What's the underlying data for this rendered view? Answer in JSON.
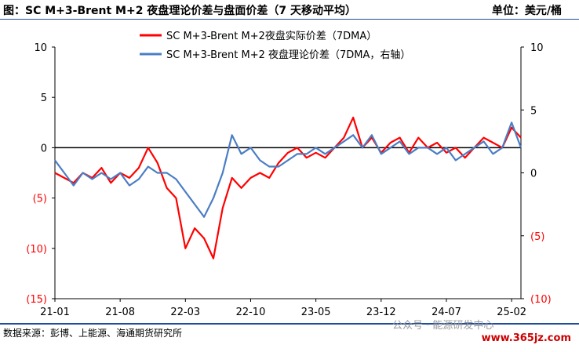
{
  "header": {
    "title": "图：SC M+3-Brent M+2 夜盘理论价差与盘面价差（7 天移动平均）",
    "unit": "单位：美元/桶"
  },
  "footer": {
    "source": "数据来源：彭博、上能源、海通期货研究所",
    "watermark": "公众号 · 能源研发中心",
    "site": "www.365jz.com"
  },
  "colors": {
    "actual": "#ff0000",
    "theory": "#4a7dc4",
    "neg_label": "#ff0000"
  },
  "chart_data": {
    "type": "line",
    "legend_placement": "top-center",
    "grid": false,
    "x_tick_labels": [
      "21-01",
      "21-08",
      "22-03",
      "22-10",
      "23-05",
      "23-12",
      "24-07",
      "25-02"
    ],
    "x": [
      "21-01",
      "21-02",
      "21-03",
      "21-04",
      "21-05",
      "21-06",
      "21-07",
      "21-08",
      "21-09",
      "21-10",
      "21-11",
      "21-12",
      "22-01",
      "22-02",
      "22-03",
      "22-04",
      "22-05",
      "22-06",
      "22-07",
      "22-08",
      "22-09",
      "22-10",
      "22-11",
      "22-12",
      "23-01",
      "23-02",
      "23-03",
      "23-04",
      "23-05",
      "23-06",
      "23-07",
      "23-08",
      "23-09",
      "23-10",
      "23-11",
      "23-12",
      "24-01",
      "24-02",
      "24-03",
      "24-04",
      "24-05",
      "24-06",
      "24-07",
      "24-08",
      "24-09",
      "24-10",
      "24-11",
      "24-12",
      "25-01",
      "25-02",
      "25-03"
    ],
    "y_left": {
      "ticks": [
        10,
        5,
        0,
        -5,
        -10,
        -15
      ],
      "tick_labels": [
        "10",
        "5",
        "0",
        "(5)",
        "(10)",
        "(15)"
      ],
      "range": [
        -15,
        10
      ]
    },
    "y_right": {
      "ticks": [
        10,
        5,
        0,
        -5,
        -10
      ],
      "tick_labels": [
        "10",
        "5",
        "0",
        "(5)",
        "(10)"
      ],
      "range": [
        -10,
        10
      ]
    },
    "series": [
      {
        "name": "SC M+3-Brent M+2夜盘实际价差（7DMA）",
        "axis": "left",
        "values": [
          -2.5,
          -3,
          -3.5,
          -2.5,
          -3,
          -2,
          -3.5,
          -2.5,
          -3,
          -2,
          0,
          -1.5,
          -4,
          -5,
          -10,
          -8,
          -9,
          -11,
          -6,
          -3,
          -4,
          -3,
          -2.5,
          -3,
          -1.5,
          -0.5,
          0,
          -1,
          -0.5,
          -1,
          0,
          1,
          3,
          0,
          1,
          -0.5,
          0.5,
          1,
          -0.5,
          1,
          0,
          0.5,
          -0.5,
          0,
          -1,
          0,
          1,
          0.5,
          0,
          2,
          1
        ]
      },
      {
        "name": "SC M+3-Brent M+2 夜盘理论价差（7DMA，右轴）",
        "axis": "right",
        "values": [
          1,
          0,
          -1,
          0,
          -0.5,
          0,
          -0.5,
          0,
          -1,
          -0.5,
          0.5,
          0,
          0,
          -0.5,
          -1.5,
          -2.5,
          -3.5,
          -2,
          0,
          3,
          1.5,
          2,
          1,
          0.5,
          0.5,
          1,
          1.5,
          1.5,
          2,
          1.5,
          2,
          2.5,
          3,
          2,
          3,
          1.5,
          2,
          2.5,
          1.5,
          2,
          2,
          1.5,
          2,
          1,
          1.5,
          2,
          2.5,
          1.5,
          2,
          4,
          2
        ]
      }
    ]
  }
}
